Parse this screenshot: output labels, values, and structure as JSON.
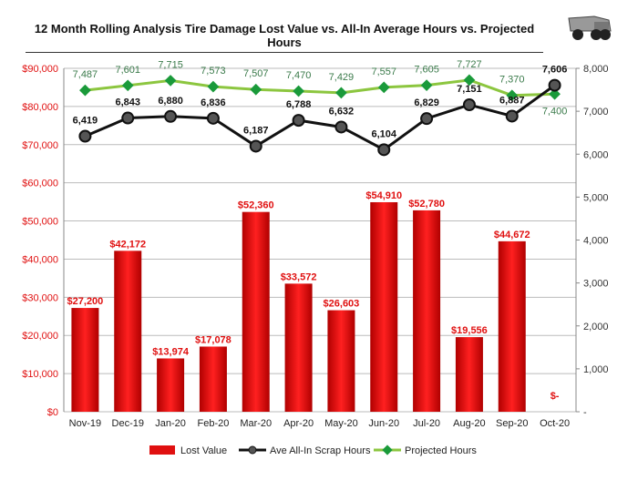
{
  "chart_data": {
    "type": "bar+line",
    "title": "12 Month Rolling Analysis Tire Damage Lost Value vs. All-In Average Hours vs. Projected Hours",
    "categories": [
      "Nov-19",
      "Dec-19",
      "Jan-20",
      "Feb-20",
      "Mar-20",
      "Apr-20",
      "May-20",
      "Jun-20",
      "Jul-20",
      "Aug-20",
      "Sep-20",
      "Oct-20"
    ],
    "left_axis": {
      "min": 0,
      "max": 90000,
      "step": 10000,
      "ticks": [
        "$0",
        "$10,000",
        "$20,000",
        "$30,000",
        "$40,000",
        "$50,000",
        "$60,000",
        "$70,000",
        "$80,000",
        "$90,000"
      ]
    },
    "right_axis": {
      "min": 0,
      "max": 8000,
      "step": 1000,
      "ticks": [
        "-",
        "1,000",
        "2,000",
        "3,000",
        "4,000",
        "5,000",
        "6,000",
        "7,000",
        "8,000"
      ]
    },
    "grid": true,
    "legend_position": "bottom",
    "series": [
      {
        "name": "Lost Value",
        "type": "bar",
        "axis": "left",
        "color": "#e01010",
        "values": [
          27200,
          42172,
          13974,
          17078,
          52360,
          33572,
          26603,
          54910,
          52780,
          19556,
          44672,
          0
        ],
        "labels": [
          "$27,200",
          "$42,172",
          "$13,974",
          "$17,078",
          "$52,360",
          "$33,572",
          "$26,603",
          "$54,910",
          "$52,780",
          "$19,556",
          "$44,672",
          "$-"
        ]
      },
      {
        "name": "Ave All-In Scrap Hours",
        "type": "line",
        "axis": "right",
        "color": "#111111",
        "values": [
          6419,
          6843,
          6880,
          6836,
          6187,
          6788,
          6632,
          6104,
          6829,
          7151,
          6887,
          7606
        ],
        "labels": [
          "6,419",
          "6,843",
          "6,880",
          "6,836",
          "6,187",
          "6,788",
          "6,632",
          "6,104",
          "6,829",
          "7,151",
          "6,887",
          "7,606"
        ]
      },
      {
        "name": "Projected Hours",
        "type": "line",
        "axis": "right",
        "color": "#8cc63f",
        "marker_color": "#1a9a3a",
        "values": [
          7487,
          7601,
          7715,
          7573,
          7507,
          7470,
          7429,
          7557,
          7605,
          7727,
          7370,
          7400
        ],
        "labels": [
          "7,487",
          "7,601",
          "7,715",
          "7,573",
          "7,507",
          "7,470",
          "7,429",
          "7,557",
          "7,605",
          "7,727",
          "7,370",
          "7,400"
        ]
      }
    ]
  }
}
